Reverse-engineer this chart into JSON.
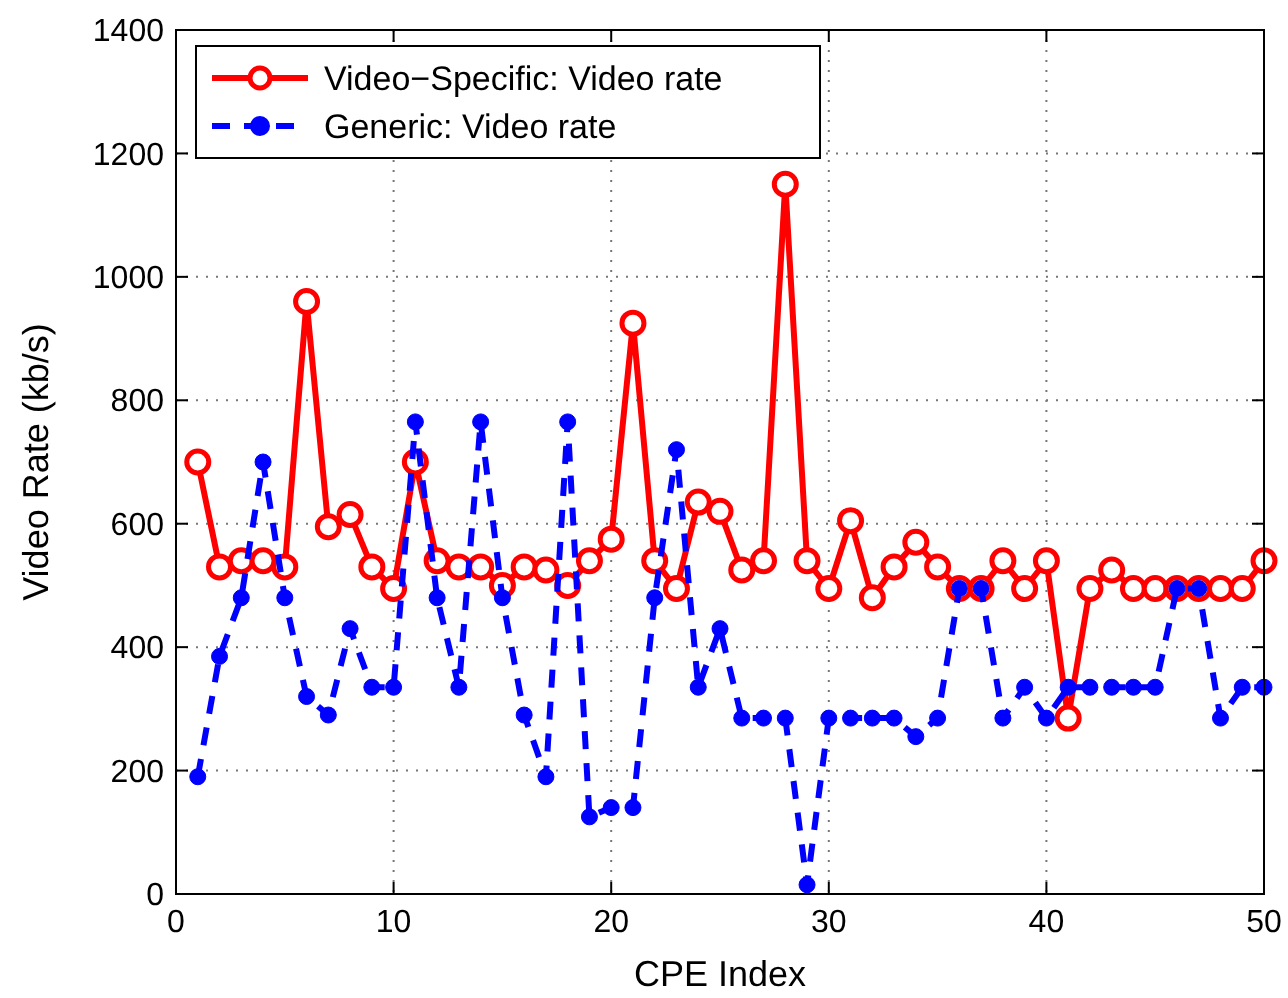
{
  "chart_data": {
    "type": "line",
    "xlabel": "CPE Index",
    "ylabel": "Video Rate (kb/s)",
    "x": [
      1,
      2,
      3,
      4,
      5,
      6,
      7,
      8,
      9,
      10,
      11,
      12,
      13,
      14,
      15,
      16,
      17,
      18,
      19,
      20,
      21,
      22,
      23,
      24,
      25,
      26,
      27,
      28,
      29,
      30,
      31,
      32,
      33,
      34,
      35,
      36,
      37,
      38,
      39,
      40,
      41,
      42,
      43,
      44,
      45,
      46,
      47,
      48,
      49,
      50
    ],
    "series": [
      {
        "name": "Video−Specific: Video rate",
        "color": "#ff0000",
        "marker": "circle",
        "line_style": "solid",
        "values": [
          700,
          530,
          540,
          540,
          530,
          960,
          595,
          615,
          530,
          495,
          700,
          540,
          530,
          530,
          500,
          530,
          525,
          500,
          540,
          575,
          925,
          540,
          495,
          635,
          620,
          525,
          540,
          1150,
          540,
          495,
          605,
          480,
          530,
          570,
          530,
          495,
          495,
          540,
          495,
          540,
          285,
          495,
          525,
          495,
          495,
          495,
          495,
          495,
          495,
          540
        ]
      },
      {
        "name": "Generic: Video rate",
        "color": "#0000ff",
        "marker": "circle",
        "line_style": "dashed",
        "values": [
          190,
          385,
          480,
          700,
          480,
          320,
          290,
          430,
          335,
          335,
          765,
          480,
          335,
          765,
          480,
          290,
          190,
          765,
          125,
          140,
          140,
          480,
          720,
          335,
          430,
          285,
          285,
          285,
          15,
          285,
          285,
          285,
          285,
          255,
          285,
          495,
          495,
          285,
          335,
          285,
          335,
          335,
          335,
          335,
          335,
          495,
          495,
          285,
          335,
          335
        ]
      }
    ],
    "xlim": [
      0,
      50
    ],
    "xticks": [
      0,
      10,
      20,
      30,
      40,
      50
    ],
    "ylim": [
      0,
      1400
    ],
    "yticks": [
      0,
      200,
      400,
      600,
      800,
      1000,
      1200,
      1400
    ],
    "grid": true,
    "legend": "top left"
  }
}
